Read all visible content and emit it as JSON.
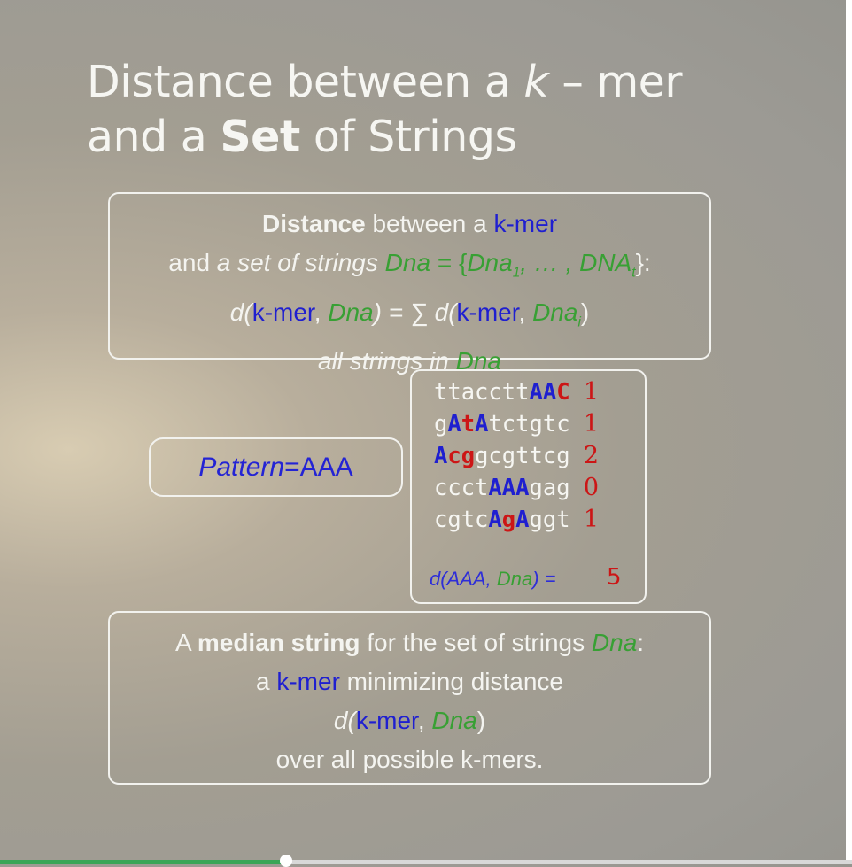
{
  "title": {
    "line1_pre": "Distance between a ",
    "line1_k": "k",
    "line1_post": " – mer",
    "line2_pre": "and a ",
    "line2_bold": "Set",
    "line2_post": " of Strings"
  },
  "definition_box": {
    "l1_bold": "Distance",
    "l1_mid": " between a ",
    "l1_kmer": "k-mer",
    "l2_and": "and ",
    "l2_set": "a set of strings ",
    "l2_dna": "Dna",
    "l2_eq": " = {",
    "l2_dna1": "Dna",
    "l2_sub1": "1",
    "l2_dots": ", … , ",
    "l2_dnat": "DNA",
    "l2_subt": "t",
    "l2_end": "}:",
    "l3_d": "d(",
    "l3_kmer": "k-mer",
    "l3_comma": ", ",
    "l3_dna": "Dna",
    "l3_eq": ") = ∑ d(",
    "l3_kmer2": "k-mer",
    "l3_comma2": ", ",
    "l3_dnai": "Dna",
    "l3_subi": "i",
    "l3_close": ")",
    "l4_pre": "all strings in ",
    "l4_dna": "Dna"
  },
  "pattern": {
    "label": "Pattern",
    "eq": " = ",
    "value": "AAA"
  },
  "sequences": [
    {
      "parts": [
        [
          "ttacctt",
          "plain"
        ],
        [
          "AA",
          "blue"
        ],
        [
          "C",
          "red"
        ]
      ],
      "dist": "1"
    },
    {
      "parts": [
        [
          "g",
          "plain"
        ],
        [
          "A",
          "blue"
        ],
        [
          "t",
          "red"
        ],
        [
          "A",
          "blue"
        ],
        [
          "tctgtc",
          "plain"
        ]
      ],
      "dist": "1"
    },
    {
      "parts": [
        [
          "A",
          "blue"
        ],
        [
          "cg",
          "red"
        ],
        [
          "gcgttcg",
          "plain"
        ]
      ],
      "dist": "2"
    },
    {
      "parts": [
        [
          "ccct",
          "plain"
        ],
        [
          "AAA",
          "blue"
        ],
        [
          "gag",
          "plain"
        ]
      ],
      "dist": "0"
    },
    {
      "parts": [
        [
          "cgtc",
          "plain"
        ],
        [
          "A",
          "blue"
        ],
        [
          "g",
          "red"
        ],
        [
          "A",
          "blue"
        ],
        [
          "ggt",
          "plain"
        ]
      ],
      "dist": "1"
    }
  ],
  "total": {
    "label_d": "d(",
    "label_aaa": "AAA",
    "label_comma": ", ",
    "label_dna": "Dna",
    "label_eq": ") =",
    "value": "5"
  },
  "median_box": {
    "l1_a": "A ",
    "l1_bold": "median string",
    "l1_mid": " for the set of strings ",
    "l1_dna": "Dna",
    "l1_colon": ":",
    "l2_a": "a ",
    "l2_kmer": "k-mer",
    "l2_rest": " minimizing distance",
    "l3_d": "d(",
    "l3_kmer": "k-mer",
    "l3_comma": ", ",
    "l3_dna": "Dna",
    "l3_close": ")",
    "l4": "over all possible k-mers."
  },
  "player": {
    "progress_fraction": 0.336,
    "fill_color": "#3aa657"
  },
  "colors": {
    "kmer": "#1f1fd0",
    "dna": "#38a034",
    "mismatch": "#cc1616"
  }
}
